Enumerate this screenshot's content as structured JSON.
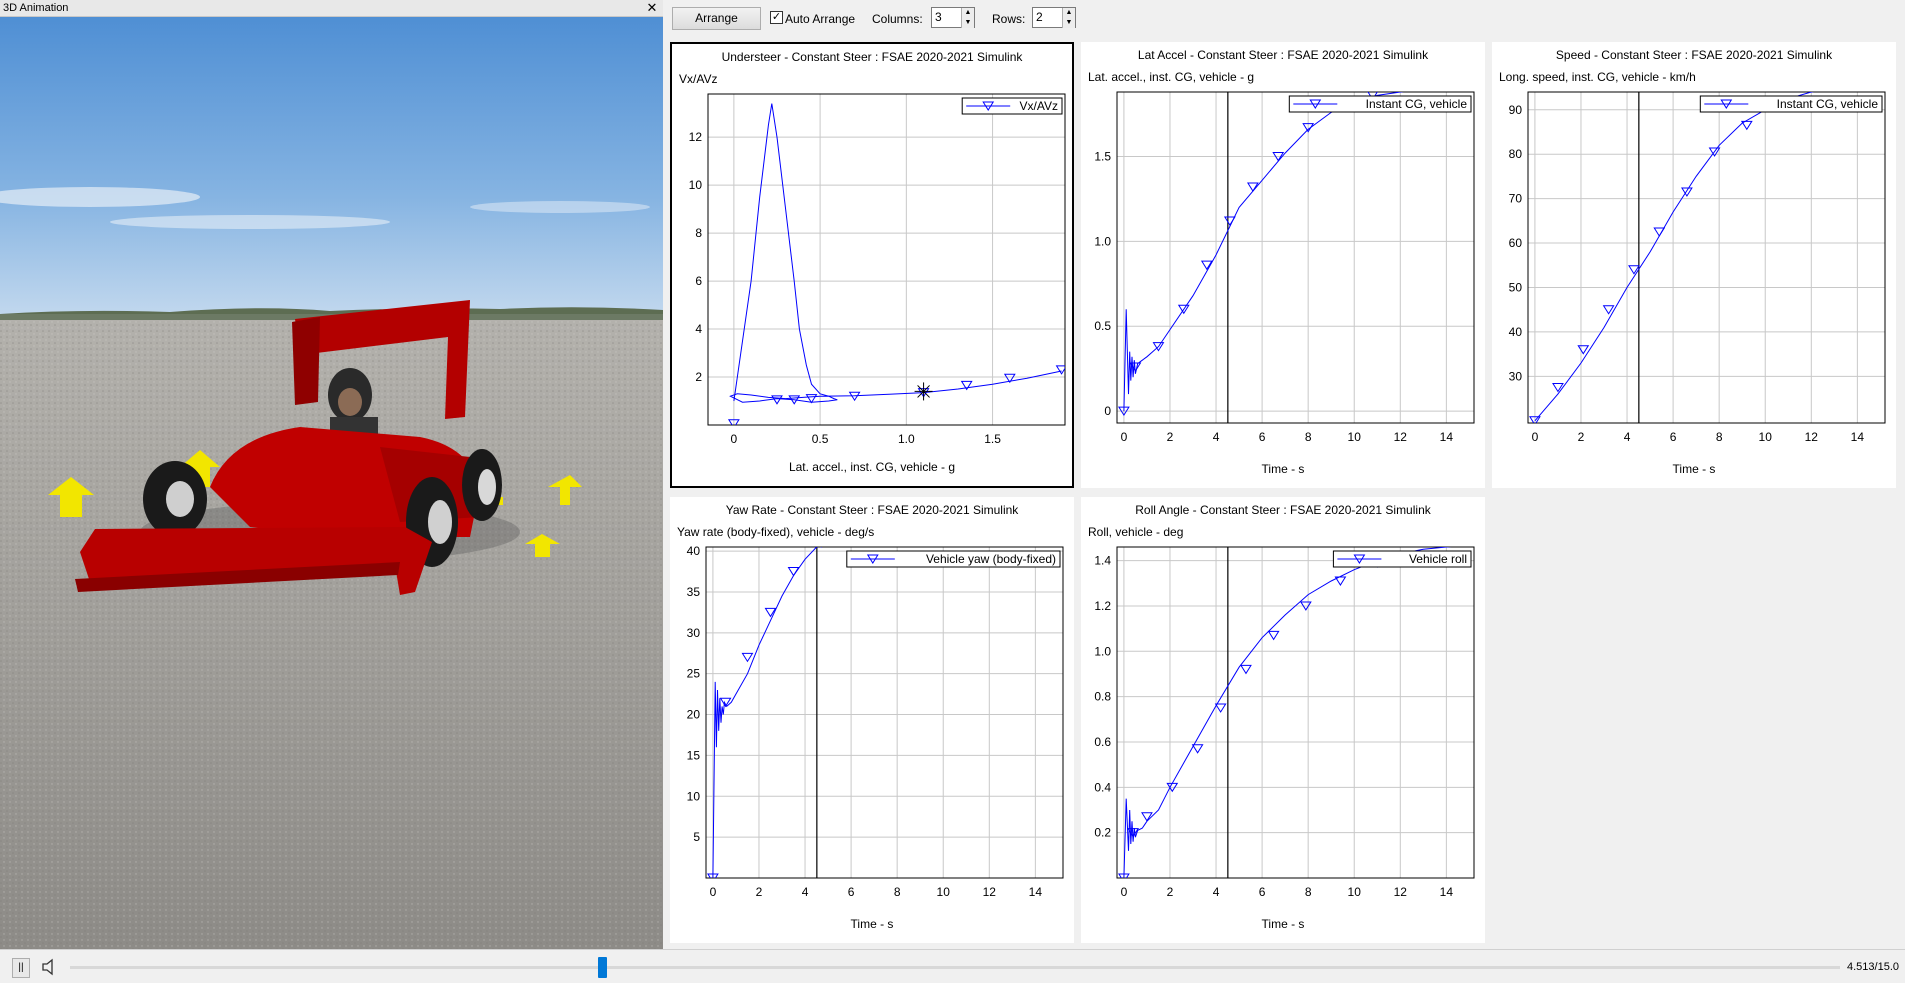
{
  "animation": {
    "title": "3D Animation",
    "close_label": "✕"
  },
  "toolbar": {
    "arrange_label": "Arrange",
    "auto_arrange_label": "Auto Arrange",
    "auto_arrange_checked": true,
    "columns_label": "Columns:",
    "columns_value": "3",
    "rows_label": "Rows:",
    "rows_value": "2"
  },
  "playback": {
    "pause_label": "||",
    "time_readout": "4.513/15.0",
    "current_time": 4.513,
    "total_time": 15.0
  },
  "chart_data": [
    {
      "id": "understeer",
      "type": "line",
      "title": "Understeer - Constant Steer : FSAE 2020-2021 Simulink",
      "ylabel": "Vx/AVz",
      "xlabel": "Lat. accel., inst. CG, vehicle - g",
      "xticks": [
        "0",
        "0.5",
        "1.0",
        "1.5"
      ],
      "yticks": [
        "2",
        "4",
        "6",
        "8",
        "10",
        "12"
      ],
      "xlim": [
        -0.15,
        1.92
      ],
      "ylim": [
        0,
        13.8
      ],
      "series": [
        {
          "name": "Vx/AVz",
          "x": [
            0,
            0.05,
            0.1,
            0.15,
            0.2,
            0.22,
            0.25,
            0.3,
            0.35,
            0.38,
            0.42,
            0.45,
            0.5,
            0.55,
            0.58,
            0.6,
            0.55,
            0.45,
            0.35,
            0.25,
            0.15,
            0.05,
            -0.02,
            0.02,
            0.1,
            0.2,
            0.3,
            0.4,
            0.5,
            0.7,
            0.9,
            1.1,
            1.3,
            1.5,
            1.7,
            1.9
          ],
          "y": [
            1.0,
            3.5,
            6.0,
            9.5,
            12.5,
            13.4,
            12.0,
            9.0,
            6.0,
            4.0,
            2.5,
            1.7,
            1.3,
            1.2,
            1.1,
            1.05,
            1.0,
            0.95,
            1.05,
            1.1,
            1.0,
            0.95,
            1.2,
            1.3,
            1.25,
            1.15,
            1.1,
            1.15,
            1.2,
            1.22,
            1.28,
            1.35,
            1.5,
            1.7,
            1.95,
            2.25
          ]
        }
      ],
      "markers_x": [
        0,
        0.25,
        0.35,
        0.45,
        0.7,
        1.1,
        1.35,
        1.6,
        1.9
      ],
      "markers_y": [
        0.05,
        1.05,
        1.05,
        1.1,
        1.2,
        1.35,
        1.65,
        1.95,
        2.3
      ],
      "cursor": [
        1.1,
        1.4
      ]
    },
    {
      "id": "lat-accel",
      "type": "line",
      "title": "Lat Accel - Constant Steer : FSAE 2020-2021 Simulink",
      "ylabel": "Lat. accel., inst. CG, vehicle - g",
      "xlabel": "Time - s",
      "xticks": [
        "0",
        "2",
        "4",
        "6",
        "8",
        "10",
        "12",
        "14"
      ],
      "yticks": [
        "0",
        "0.5",
        "1.0",
        "1.5"
      ],
      "xlim": [
        -0.3,
        15.2
      ],
      "ylim": [
        -0.07,
        1.88
      ],
      "series": [
        {
          "name": "Instant CG, vehicle",
          "x": [
            0,
            0.1,
            0.2,
            0.25,
            0.3,
            0.35,
            0.4,
            0.45,
            0.5,
            0.6,
            0.8,
            1,
            1.5,
            2,
            3,
            4,
            5,
            6,
            7,
            8,
            9,
            10,
            11,
            12,
            13,
            14,
            15
          ],
          "y": [
            0,
            0.6,
            0.1,
            0.35,
            0.18,
            0.32,
            0.2,
            0.3,
            0.22,
            0.28,
            0.3,
            0.32,
            0.38,
            0.48,
            0.68,
            0.92,
            1.2,
            1.36,
            1.52,
            1.66,
            1.76,
            1.82,
            1.86,
            1.88,
            1.9,
            1.92,
            1.93
          ]
        }
      ],
      "markers_x": [
        0,
        0.5,
        1.5,
        2.6,
        3.6,
        4.6,
        5.6,
        6.7,
        8.0,
        9.4,
        10.8
      ],
      "markers_y": [
        0,
        0.26,
        0.38,
        0.6,
        0.86,
        1.12,
        1.32,
        1.5,
        1.67,
        1.8,
        1.86
      ],
      "cursor_x": 4.513
    },
    {
      "id": "speed",
      "type": "line",
      "title": "Speed - Constant Steer : FSAE 2020-2021 Simulink",
      "ylabel": "Long. speed, inst. CG, vehicle - km/h",
      "xlabel": "Time - s",
      "xticks": [
        "0",
        "2",
        "4",
        "6",
        "8",
        "10",
        "12",
        "14"
      ],
      "yticks": [
        "30",
        "40",
        "50",
        "60",
        "70",
        "80",
        "90"
      ],
      "xlim": [
        -0.3,
        15.2
      ],
      "ylim": [
        19.5,
        94
      ],
      "series": [
        {
          "name": "Instant CG, vehicle",
          "x": [
            0,
            1,
            2,
            3,
            4,
            5,
            6,
            7,
            8,
            9,
            10,
            11,
            12,
            13,
            14,
            15
          ],
          "y": [
            20,
            26,
            33,
            41,
            50,
            58,
            67,
            75,
            82,
            87,
            90,
            92.5,
            94,
            95,
            95.5,
            96
          ]
        }
      ],
      "markers_x": [
        0,
        1.0,
        2.1,
        3.2,
        4.3,
        5.4,
        6.6,
        7.8,
        9.2,
        10.7
      ],
      "markers_y": [
        20,
        27.5,
        36,
        45,
        54,
        62.5,
        71.5,
        80.5,
        86.5,
        91
      ],
      "cursor_x": 4.513
    },
    {
      "id": "yaw-rate",
      "type": "line",
      "title": "Yaw Rate - Constant Steer : FSAE 2020-2021 Simulink",
      "ylabel": "Yaw rate (body-fixed), vehicle - deg/s",
      "xlabel": "Time - s",
      "xticks": [
        "0",
        "2",
        "4",
        "6",
        "8",
        "10",
        "12",
        "14"
      ],
      "yticks": [
        "5",
        "10",
        "15",
        "20",
        "25",
        "30",
        "35",
        "40"
      ],
      "xlim": [
        -0.3,
        15.2
      ],
      "ylim": [
        0,
        40.5
      ],
      "series": [
        {
          "name": "Vehicle yaw (body-fixed)",
          "x": [
            0,
            0.1,
            0.15,
            0.2,
            0.25,
            0.3,
            0.35,
            0.4,
            0.45,
            0.5,
            0.6,
            0.8,
            1,
            1.5,
            2,
            2.5,
            3,
            3.5,
            4,
            4.5,
            5,
            6,
            8,
            10,
            12,
            14,
            15
          ],
          "y": [
            0,
            24,
            16,
            23,
            18,
            22,
            19,
            21,
            20,
            21.5,
            21,
            21.5,
            22.5,
            25,
            28.5,
            31.5,
            34.5,
            37,
            39,
            40.5,
            41,
            41.2,
            41.3,
            41.3,
            41.3,
            41.3,
            41.3
          ]
        }
      ],
      "markers_x": [
        0,
        0.55,
        1.5,
        2.5,
        3.5,
        4.7
      ],
      "markers_y": [
        0,
        21.5,
        27,
        32.5,
        37.5,
        41
      ],
      "cursor_x": 4.513
    },
    {
      "id": "roll-angle",
      "type": "line",
      "title": "Roll Angle - Constant Steer : FSAE 2020-2021 Simulink",
      "ylabel": "Roll, vehicle - deg",
      "xlabel": "Time - s",
      "xticks": [
        "0",
        "2",
        "4",
        "6",
        "8",
        "10",
        "12",
        "14"
      ],
      "yticks": [
        "0.2",
        "0.4",
        "0.6",
        "0.8",
        "1.0",
        "1.2",
        "1.4"
      ],
      "xlim": [
        -0.3,
        15.2
      ],
      "ylim": [
        0,
        1.46
      ],
      "series": [
        {
          "name": "Vehicle roll",
          "x": [
            0,
            0.1,
            0.2,
            0.25,
            0.3,
            0.35,
            0.4,
            0.45,
            0.5,
            0.6,
            0.8,
            1,
            1.5,
            2,
            3,
            4,
            5,
            6,
            7,
            8,
            9,
            10,
            11,
            12,
            13,
            14,
            15
          ],
          "y": [
            0,
            0.35,
            0.12,
            0.3,
            0.15,
            0.25,
            0.16,
            0.22,
            0.18,
            0.21,
            0.22,
            0.25,
            0.3,
            0.4,
            0.58,
            0.76,
            0.93,
            1.06,
            1.16,
            1.25,
            1.31,
            1.36,
            1.4,
            1.43,
            1.45,
            1.46,
            1.47
          ]
        }
      ],
      "markers_x": [
        0,
        0.4,
        1.0,
        2.1,
        3.2,
        4.2,
        5.3,
        6.5,
        7.9,
        9.4,
        11.0
      ],
      "markers_y": [
        0,
        0.2,
        0.27,
        0.4,
        0.57,
        0.75,
        0.92,
        1.07,
        1.2,
        1.31,
        1.39
      ],
      "cursor_x": 4.513
    }
  ]
}
